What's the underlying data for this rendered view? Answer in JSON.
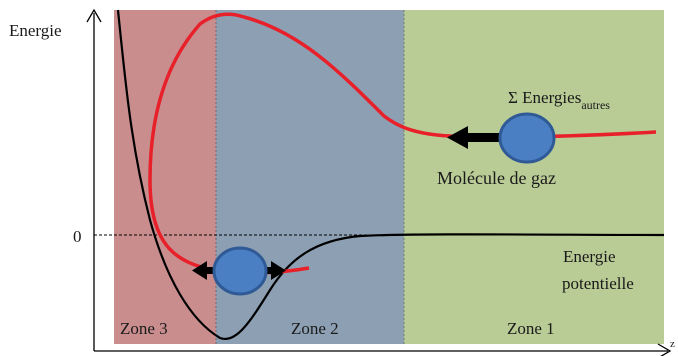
{
  "labels": {
    "y_axis": "Energie",
    "x_axis": "z",
    "zero": "0",
    "sum_prefix": "Σ Energies",
    "sum_subscript": "autres",
    "molecule": "Molécule de gaz",
    "potential_line1": "Energie",
    "potential_line2": "potentielle"
  },
  "zones": [
    {
      "id": "zone-3",
      "label": "Zone 3",
      "color": "#c98d8e"
    },
    {
      "id": "zone-2",
      "label": "Zone 2",
      "color": "#8d9fb3"
    },
    {
      "id": "zone-1",
      "label": "Zone 1",
      "color": "#b9cc96"
    }
  ],
  "colors": {
    "red_curve": "#e8202a",
    "potential_curve": "#000000",
    "molecule_fill": "#4a7fc4",
    "molecule_stroke": "#2f5a96",
    "arrow": "#000000",
    "dashed_line": "#000000",
    "axis": "#000000"
  },
  "icons": [
    "molecule-circle",
    "left-arrow",
    "right-arrow"
  ]
}
